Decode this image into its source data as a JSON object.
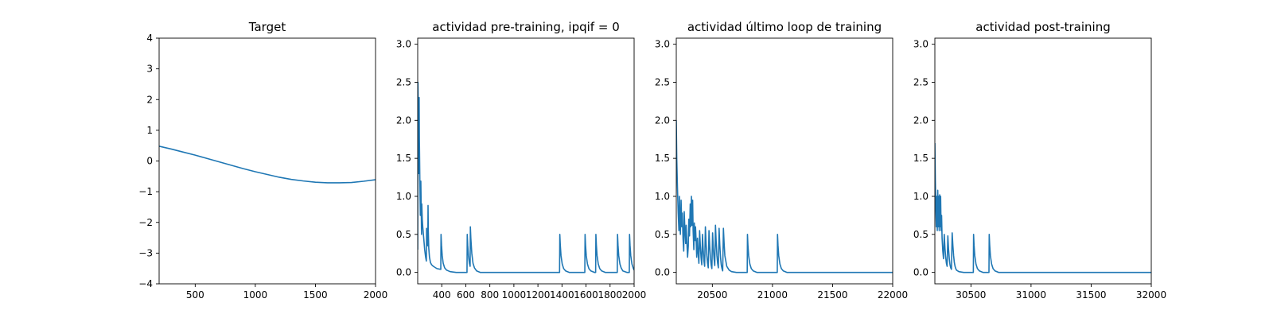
{
  "chart_data": [
    {
      "type": "line",
      "title": "Target",
      "xlabel": "",
      "ylabel": "",
      "xlim": [
        200,
        2000
      ],
      "ylim": [
        -4,
        4
      ],
      "xticks": [
        500,
        1000,
        1500,
        2000
      ],
      "yticks": [
        -4,
        -3,
        -2,
        -1,
        0,
        1,
        2,
        3,
        4
      ],
      "xtick_labels": [
        "500",
        "1000",
        "1500",
        "2000"
      ],
      "ytick_labels": [
        "−4",
        "−3",
        "−2",
        "−1",
        "0",
        "1",
        "2",
        "3",
        "4"
      ],
      "grid": false,
      "color": "#1f77b4",
      "series": [
        {
          "x": [
            200,
            300,
            400,
            500,
            600,
            700,
            800,
            900,
            1000,
            1100,
            1200,
            1300,
            1400,
            1500,
            1600,
            1700,
            1800,
            1900,
            2000
          ],
          "values": [
            0.48,
            0.39,
            0.29,
            0.19,
            0.08,
            -0.03,
            -0.14,
            -0.25,
            -0.35,
            -0.44,
            -0.53,
            -0.6,
            -0.65,
            -0.69,
            -0.71,
            -0.71,
            -0.7,
            -0.66,
            -0.61
          ]
        }
      ]
    },
    {
      "type": "line",
      "title": "actividad pre-training, ipqif = 0",
      "xlabel": "",
      "ylabel": "",
      "xlim": [
        200,
        2000
      ],
      "ylim": [
        -0.15,
        3.08
      ],
      "xticks": [
        400,
        600,
        800,
        1000,
        1200,
        1400,
        1600,
        1800,
        2000
      ],
      "yticks": [
        0,
        0.5,
        1,
        1.5,
        2,
        2.5,
        3
      ],
      "xtick_labels": [
        "400",
        "600",
        "800",
        "1000",
        "1200",
        "1400",
        "1600",
        "1800",
        "2000"
      ],
      "ytick_labels": [
        "0.0",
        "0.5",
        "1.0",
        "1.5",
        "2.0",
        "2.5",
        "3.0"
      ],
      "grid": false,
      "color": "#1f77b4",
      "series": [
        {
          "x": [
            200,
            202,
            206,
            210,
            212,
            214,
            218,
            222,
            226,
            230,
            232,
            234,
            238,
            242,
            250,
            258,
            266,
            272,
            274,
            276,
            280,
            284,
            286,
            288,
            292,
            298,
            306,
            316,
            330,
            360,
            392,
            394,
            398,
            404,
            412,
            424,
            440,
            470,
            520,
            590,
            610,
            612,
            616,
            622,
            630,
            636,
            638,
            642,
            650,
            660,
            672,
            690,
            720,
            800,
            1000,
            1200,
            1380,
            1382,
            1386,
            1392,
            1402,
            1414,
            1430,
            1460,
            1500,
            1550,
            1590,
            1592,
            1596,
            1602,
            1612,
            1624,
            1640,
            1670,
            1680,
            1682,
            1686,
            1692,
            1702,
            1714,
            1730,
            1760,
            1800,
            1850,
            1860,
            1862,
            1866,
            1872,
            1882,
            1892,
            1906,
            1940,
            1960,
            1962,
            1966,
            1972,
            1982,
            1992,
            2000
          ],
          "values": [
            0.3,
            2.5,
            1.9,
            1.3,
            2.3,
            1.75,
            1.2,
            0.75,
            1.2,
            0.75,
            0.5,
            0.9,
            0.7,
            0.6,
            0.45,
            0.3,
            0.2,
            0.15,
            0.58,
            0.45,
            0.55,
            0.35,
            0.88,
            0.55,
            0.32,
            0.2,
            0.13,
            0.1,
            0.08,
            0.05,
            0.04,
            0.5,
            0.36,
            0.22,
            0.12,
            0.06,
            0.03,
            0.01,
            0.0,
            0.0,
            0.0,
            0.5,
            0.36,
            0.22,
            0.12,
            0.08,
            0.6,
            0.45,
            0.25,
            0.12,
            0.06,
            0.02,
            0.0,
            0.0,
            0.0,
            0.0,
            0.0,
            0.5,
            0.36,
            0.22,
            0.11,
            0.05,
            0.02,
            0.0,
            0.0,
            0.0,
            0.0,
            0.5,
            0.36,
            0.22,
            0.11,
            0.05,
            0.02,
            0.0,
            0.0,
            0.5,
            0.36,
            0.22,
            0.11,
            0.05,
            0.02,
            0.0,
            0.0,
            0.0,
            0.0,
            0.5,
            0.36,
            0.22,
            0.11,
            0.06,
            0.02,
            0.0,
            0.0,
            0.5,
            0.36,
            0.22,
            0.11,
            0.06,
            0.03
          ]
        }
      ]
    },
    {
      "type": "line",
      "title": "actividad último loop de training",
      "xlabel": "",
      "ylabel": "",
      "xlim": [
        20200,
        22000
      ],
      "ylim": [
        -0.15,
        3.08
      ],
      "xticks": [
        20500,
        21000,
        21500,
        22000
      ],
      "yticks": [
        0,
        0.5,
        1,
        1.5,
        2,
        2.5,
        3
      ],
      "xtick_labels": [
        "20500",
        "21000",
        "21500",
        "22000"
      ],
      "ytick_labels": [
        "0.0",
        "0.5",
        "1.0",
        "1.5",
        "2.0",
        "2.5",
        "3.0"
      ],
      "grid": false,
      "color": "#1f77b4",
      "series": [
        {
          "x": [
            20200,
            20204,
            20210,
            20216,
            20222,
            20226,
            20230,
            20234,
            20240,
            20246,
            20250,
            20256,
            20262,
            20266,
            20272,
            20278,
            20282,
            20288,
            20294,
            20300,
            20304,
            20310,
            20316,
            20320,
            20326,
            20330,
            20336,
            20340,
            20346,
            20350,
            20356,
            20360,
            20366,
            20370,
            20376,
            20382,
            20388,
            20394,
            20400,
            20406,
            20412,
            20418,
            20424,
            20430,
            20436,
            20442,
            20448,
            20454,
            20460,
            20466,
            20472,
            20478,
            20484,
            20490,
            20496,
            20502,
            20508,
            20514,
            20520,
            20526,
            20532,
            20538,
            20544,
            20550,
            20556,
            20562,
            20568,
            20574,
            20580,
            20586,
            20592,
            20598,
            20604,
            20620,
            20640,
            20660,
            20700,
            20780,
            20790,
            20792,
            20796,
            20802,
            20812,
            20824,
            20840,
            20870,
            20920,
            21000,
            21040,
            21042,
            21046,
            21052,
            21062,
            21074,
            21090,
            21120,
            21200,
            21400,
            21600,
            21800,
            22000
          ],
          "values": [
            2.0,
            1.5,
            1.1,
            0.78,
            0.55,
            1.0,
            0.7,
            0.5,
            0.95,
            0.6,
            0.78,
            0.45,
            0.28,
            0.8,
            0.55,
            0.38,
            0.62,
            0.4,
            0.2,
            0.35,
            0.7,
            0.48,
            0.9,
            0.6,
            1.0,
            0.62,
            0.95,
            0.55,
            0.3,
            0.65,
            0.42,
            0.6,
            0.38,
            0.2,
            0.45,
            0.25,
            0.12,
            0.55,
            0.35,
            0.2,
            0.1,
            0.5,
            0.3,
            0.15,
            0.08,
            0.6,
            0.38,
            0.22,
            0.12,
            0.06,
            0.55,
            0.35,
            0.2,
            0.1,
            0.05,
            0.52,
            0.32,
            0.18,
            0.09,
            0.62,
            0.4,
            0.22,
            0.12,
            0.06,
            0.58,
            0.36,
            0.2,
            0.1,
            0.05,
            0.02,
            0.58,
            0.38,
            0.22,
            0.08,
            0.03,
            0.01,
            0.0,
            0.0,
            0.0,
            0.5,
            0.36,
            0.22,
            0.11,
            0.05,
            0.02,
            0.0,
            0.0,
            0.0,
            0.0,
            0.5,
            0.36,
            0.22,
            0.11,
            0.05,
            0.02,
            0.0,
            0.0,
            0.0,
            0.0,
            0.0,
            0.0
          ]
        }
      ]
    },
    {
      "type": "line",
      "title": "actividad post-training",
      "xlabel": "",
      "ylabel": "",
      "xlim": [
        30200,
        32000
      ],
      "ylim": [
        -0.15,
        3.08
      ],
      "xticks": [
        30500,
        31000,
        31500,
        32000
      ],
      "yticks": [
        0,
        0.5,
        1,
        1.5,
        2,
        2.5,
        3
      ],
      "xtick_labels": [
        "30500",
        "31000",
        "31500",
        "32000"
      ],
      "ytick_labels": [
        "0.0",
        "0.5",
        "1.0",
        "1.5",
        "2.0",
        "2.5",
        "3.0"
      ],
      "grid": false,
      "color": "#1f77b4",
      "series": [
        {
          "x": [
            30200,
            30204,
            30208,
            30212,
            30216,
            30220,
            30224,
            30228,
            30232,
            30236,
            30240,
            30244,
            30248,
            30252,
            30256,
            30260,
            30266,
            30272,
            30278,
            30284,
            30290,
            30296,
            30302,
            30308,
            30314,
            30320,
            30326,
            30332,
            30338,
            30344,
            30350,
            30356,
            30362,
            30368,
            30374,
            30380,
            30400,
            30440,
            30480,
            30500,
            30520,
            30522,
            30526,
            30532,
            30542,
            30554,
            30570,
            30600,
            30640,
            30650,
            30652,
            30656,
            30662,
            30672,
            30684,
            30700,
            30730,
            30800,
            31000,
            31500,
            32000
          ],
          "values": [
            1.7,
            1.2,
            0.85,
            0.6,
            1.0,
            0.55,
            1.08,
            0.6,
            1.0,
            0.55,
            1.02,
            0.6,
            1.0,
            0.55,
            0.75,
            0.45,
            0.28,
            0.18,
            0.5,
            0.32,
            0.2,
            0.12,
            0.08,
            0.48,
            0.3,
            0.18,
            0.1,
            0.06,
            0.04,
            0.52,
            0.35,
            0.22,
            0.13,
            0.08,
            0.05,
            0.03,
            0.01,
            0.0,
            0.0,
            0.0,
            0.0,
            0.5,
            0.36,
            0.22,
            0.11,
            0.05,
            0.02,
            0.0,
            0.0,
            0.0,
            0.5,
            0.36,
            0.22,
            0.11,
            0.05,
            0.02,
            0.0,
            0.0,
            0.0,
            0.0,
            0.0
          ]
        }
      ]
    }
  ]
}
